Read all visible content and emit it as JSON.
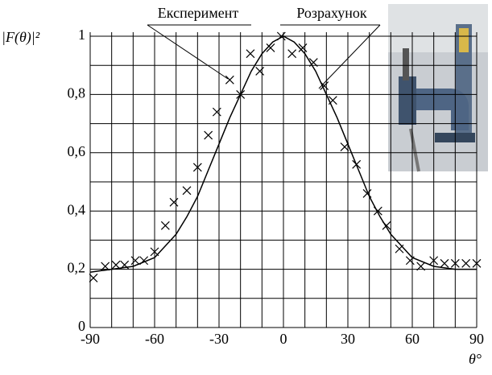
{
  "chart_data": {
    "type": "scatter",
    "y_label": "|F(θ)|²",
    "x_label": "θ°",
    "annotations": [
      "Експеримент",
      "Розрахунок"
    ],
    "xlim": [
      -90,
      90
    ],
    "xticks": [
      -90,
      -60,
      -30,
      0,
      30,
      60,
      90
    ],
    "ylim": [
      0,
      1
    ],
    "yticks": [
      0,
      {
        "value": 0.2,
        "label": "0,2"
      },
      {
        "value": 0.4,
        "label": "0,4"
      },
      {
        "value": 0.6,
        "label": "0,6"
      },
      {
        "value": 0.8,
        "label": "0,8"
      },
      1
    ],
    "grid": true,
    "series": [
      {
        "name": "Експеримент",
        "type": "scatter",
        "color": "#000000",
        "x": [
          -88.5,
          -83,
          -78,
          -74,
          -69,
          -65,
          -60,
          -55,
          -51,
          -45,
          -40,
          -35,
          -31,
          -25,
          -20,
          -15.4,
          -11,
          -6,
          -1,
          4,
          9,
          14,
          19,
          23,
          28.5,
          34,
          39,
          44,
          48,
          54,
          59,
          64,
          70,
          75,
          80,
          85,
          90
        ],
        "values": [
          0.17,
          0.21,
          0.215,
          0.215,
          0.23,
          0.23,
          0.26,
          0.35,
          0.43,
          0.47,
          0.55,
          0.66,
          0.74,
          0.85,
          0.8,
          0.94,
          0.88,
          0.96,
          1.0,
          0.94,
          0.96,
          0.91,
          0.83,
          0.78,
          0.62,
          0.56,
          0.46,
          0.4,
          0.35,
          0.27,
          0.23,
          0.21,
          0.23,
          0.22,
          0.22,
          0.22,
          0.22
        ]
      },
      {
        "name": "Розрахунок",
        "type": "line",
        "color": "#000000",
        "x": [
          -90,
          -80,
          -70,
          -60,
          -55,
          -50,
          -45,
          -40,
          -35,
          -30,
          -25,
          -20,
          -15,
          -10,
          -5,
          0,
          5,
          10,
          15,
          20,
          25,
          30,
          35,
          40,
          45,
          50,
          55,
          60,
          70,
          80,
          90
        ],
        "values": [
          0.19,
          0.2,
          0.21,
          0.24,
          0.28,
          0.32,
          0.38,
          0.45,
          0.54,
          0.63,
          0.72,
          0.8,
          0.88,
          0.94,
          0.98,
          1.0,
          0.98,
          0.94,
          0.88,
          0.8,
          0.72,
          0.63,
          0.54,
          0.45,
          0.38,
          0.32,
          0.28,
          0.24,
          0.21,
          0.2,
          0.2
        ]
      }
    ]
  }
}
